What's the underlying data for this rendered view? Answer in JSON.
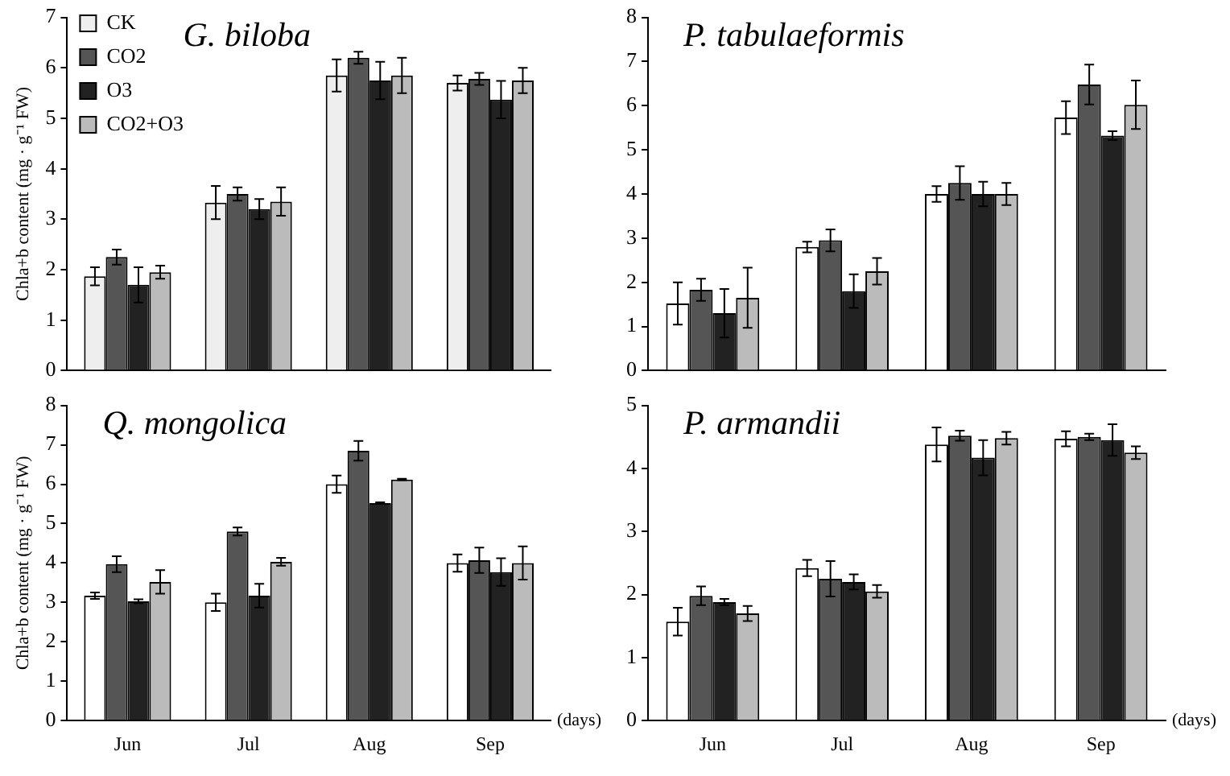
{
  "chart_data": [
    {
      "type": "bar",
      "title": "G. biloba",
      "ylabel": "Chla+b content (mg · g⁻¹ FW)",
      "categories": [
        null,
        null,
        null,
        null
      ],
      "ylim": [
        0,
        7
      ],
      "yticks": [
        0,
        1,
        2,
        3,
        4,
        5,
        6,
        7
      ],
      "legend": "top left",
      "series": [
        {
          "name": "CK",
          "color": "#eeeeee",
          "values": [
            1.87,
            3.33,
            5.85,
            5.7
          ],
          "errors": [
            0.18,
            0.33,
            0.32,
            0.15
          ]
        },
        {
          "name": "CO2",
          "color": "#555555",
          "values": [
            2.25,
            3.5,
            6.2,
            5.78
          ],
          "errors": [
            0.15,
            0.13,
            0.12,
            0.12
          ]
        },
        {
          "name": "O3",
          "color": "#222222",
          "values": [
            1.7,
            3.2,
            5.75,
            5.37
          ],
          "errors": [
            0.35,
            0.2,
            0.37,
            0.37
          ]
        },
        {
          "name": "CO2+O3",
          "color": "#bbbbbb",
          "values": [
            1.95,
            3.35,
            5.85,
            5.75
          ],
          "errors": [
            0.13,
            0.28,
            0.35,
            0.25
          ]
        }
      ]
    },
    {
      "type": "bar",
      "title": "P. tabulaeformis",
      "categories": [
        null,
        null,
        null,
        null
      ],
      "ylim": [
        0,
        8
      ],
      "yticks": [
        0,
        1,
        2,
        3,
        4,
        5,
        6,
        7,
        8
      ],
      "series": [
        {
          "color": "#ffffff",
          "values": [
            1.52,
            2.8,
            4.0,
            5.73
          ],
          "errors": [
            0.48,
            0.12,
            0.18,
            0.37
          ]
        },
        {
          "color": "#555555",
          "values": [
            1.83,
            2.95,
            4.25,
            6.48
          ],
          "errors": [
            0.25,
            0.25,
            0.38,
            0.45
          ]
        },
        {
          "color": "#222222",
          "values": [
            1.3,
            1.8,
            4.0,
            5.32
          ],
          "errors": [
            0.55,
            0.38,
            0.28,
            0.1
          ]
        },
        {
          "color": "#bbbbbb",
          "values": [
            1.65,
            2.25,
            4.0,
            6.02
          ],
          "errors": [
            0.68,
            0.3,
            0.25,
            0.55
          ]
        }
      ]
    },
    {
      "type": "bar",
      "title": "Q. mongolica",
      "ylabel": "Chla+b content (mg · g⁻¹ FW)",
      "xlabel": "(days)",
      "categories": [
        "Jun",
        "Jul",
        "Aug",
        "Sep"
      ],
      "ylim": [
        0,
        8
      ],
      "yticks": [
        0,
        1,
        2,
        3,
        4,
        5,
        6,
        7,
        8
      ],
      "series": [
        {
          "color": "#ffffff",
          "values": [
            3.17,
            3.0,
            6.0,
            4.0
          ],
          "errors": [
            0.08,
            0.22,
            0.22,
            0.22
          ]
        },
        {
          "color": "#555555",
          "values": [
            3.97,
            4.8,
            6.85,
            4.07
          ],
          "errors": [
            0.2,
            0.1,
            0.25,
            0.32
          ]
        },
        {
          "color": "#222222",
          "values": [
            3.03,
            3.17,
            5.52,
            3.77
          ],
          "errors": [
            0.05,
            0.3,
            0.02,
            0.35
          ]
        },
        {
          "color": "#bbbbbb",
          "values": [
            3.52,
            4.03,
            6.12,
            4.0
          ],
          "errors": [
            0.3,
            0.1,
            0.02,
            0.42
          ]
        }
      ]
    },
    {
      "type": "bar",
      "title": "P. armandii",
      "xlabel": "(days)",
      "categories": [
        "Jun",
        "Jul",
        "Aug",
        "Sep"
      ],
      "ylim": [
        0,
        5
      ],
      "yticks": [
        0,
        1,
        2,
        3,
        4,
        5
      ],
      "series": [
        {
          "color": "#ffffff",
          "values": [
            1.57,
            2.42,
            4.38,
            4.47
          ],
          "errors": [
            0.22,
            0.13,
            0.27,
            0.12
          ]
        },
        {
          "color": "#555555",
          "values": [
            1.98,
            2.25,
            4.52,
            4.5
          ],
          "errors": [
            0.15,
            0.28,
            0.08,
            0.05
          ]
        },
        {
          "color": "#222222",
          "values": [
            1.88,
            2.2,
            4.17,
            4.45
          ],
          "errors": [
            0.05,
            0.12,
            0.28,
            0.25
          ]
        },
        {
          "color": "#bbbbbb",
          "values": [
            1.7,
            2.05,
            4.48,
            4.25
          ],
          "errors": [
            0.12,
            0.1,
            0.1,
            0.1
          ]
        }
      ]
    }
  ]
}
